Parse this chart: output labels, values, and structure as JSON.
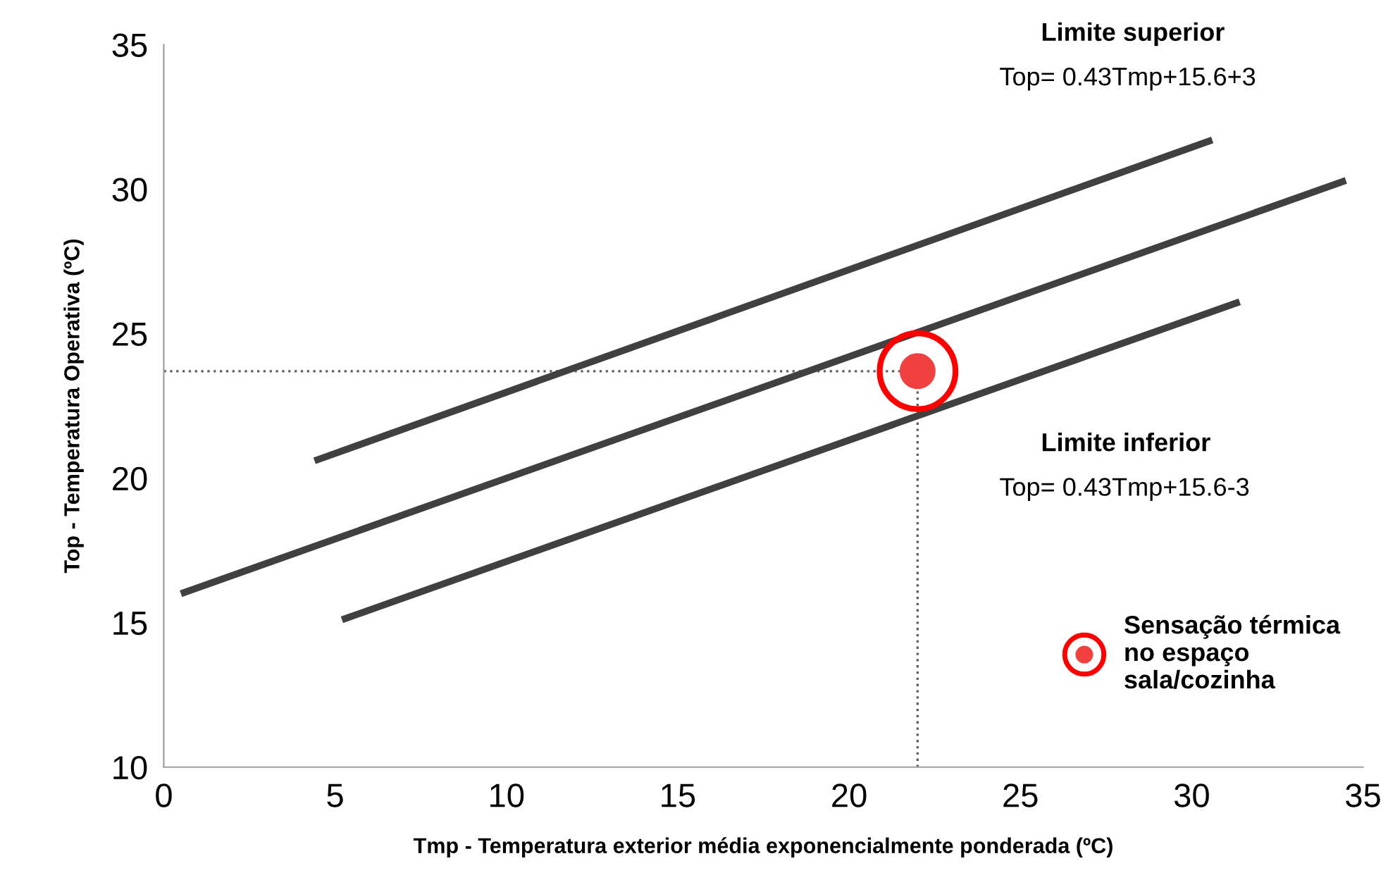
{
  "chart_data": {
    "type": "line",
    "xlabel": "Tmp - Temperatura exterior média exponencialmente ponderada (ºC)",
    "ylabel": "Top - Temperatura Operativa (ºC)",
    "xlim": [
      0,
      35
    ],
    "ylim": [
      10,
      35
    ],
    "xticks": [
      0,
      5,
      10,
      15,
      20,
      25,
      30,
      35
    ],
    "yticks": [
      10,
      15,
      20,
      25,
      30,
      35
    ],
    "grid": false,
    "legend": "bottom right",
    "marker": "none",
    "line_style": "solid",
    "series": [
      {
        "color": "#404040",
        "x": [
          4.4,
          30.6
        ],
        "values": [
          20.6,
          31.7
        ]
      },
      {
        "color": "#404040",
        "x": [
          0.5,
          34.5
        ],
        "values": [
          16.0,
          30.3
        ]
      },
      {
        "color": "#404040",
        "x": [
          5.2,
          31.4
        ],
        "values": [
          15.1,
          26.1
        ]
      },
      {
        "type": "scatter",
        "name": "Sensação térmica\nno espaço\nsala/cozinha",
        "color": "#f04040",
        "marker": "circle",
        "x": [
          22.0
        ],
        "values": [
          23.7
        ]
      }
    ],
    "ref_lines": [
      {
        "axis": "x",
        "value": 22.0,
        "line_style": "dotted",
        "color": "#606060"
      },
      {
        "axis": "y",
        "value": 23.7,
        "line_style": "dotted",
        "color": "#606060"
      }
    ],
    "annotations": [
      "Limite superior",
      "Top= 0.43Tmp+15.6+3",
      "Limite inferior",
      "Top= 0.43Tmp+15.6-3"
    ]
  }
}
